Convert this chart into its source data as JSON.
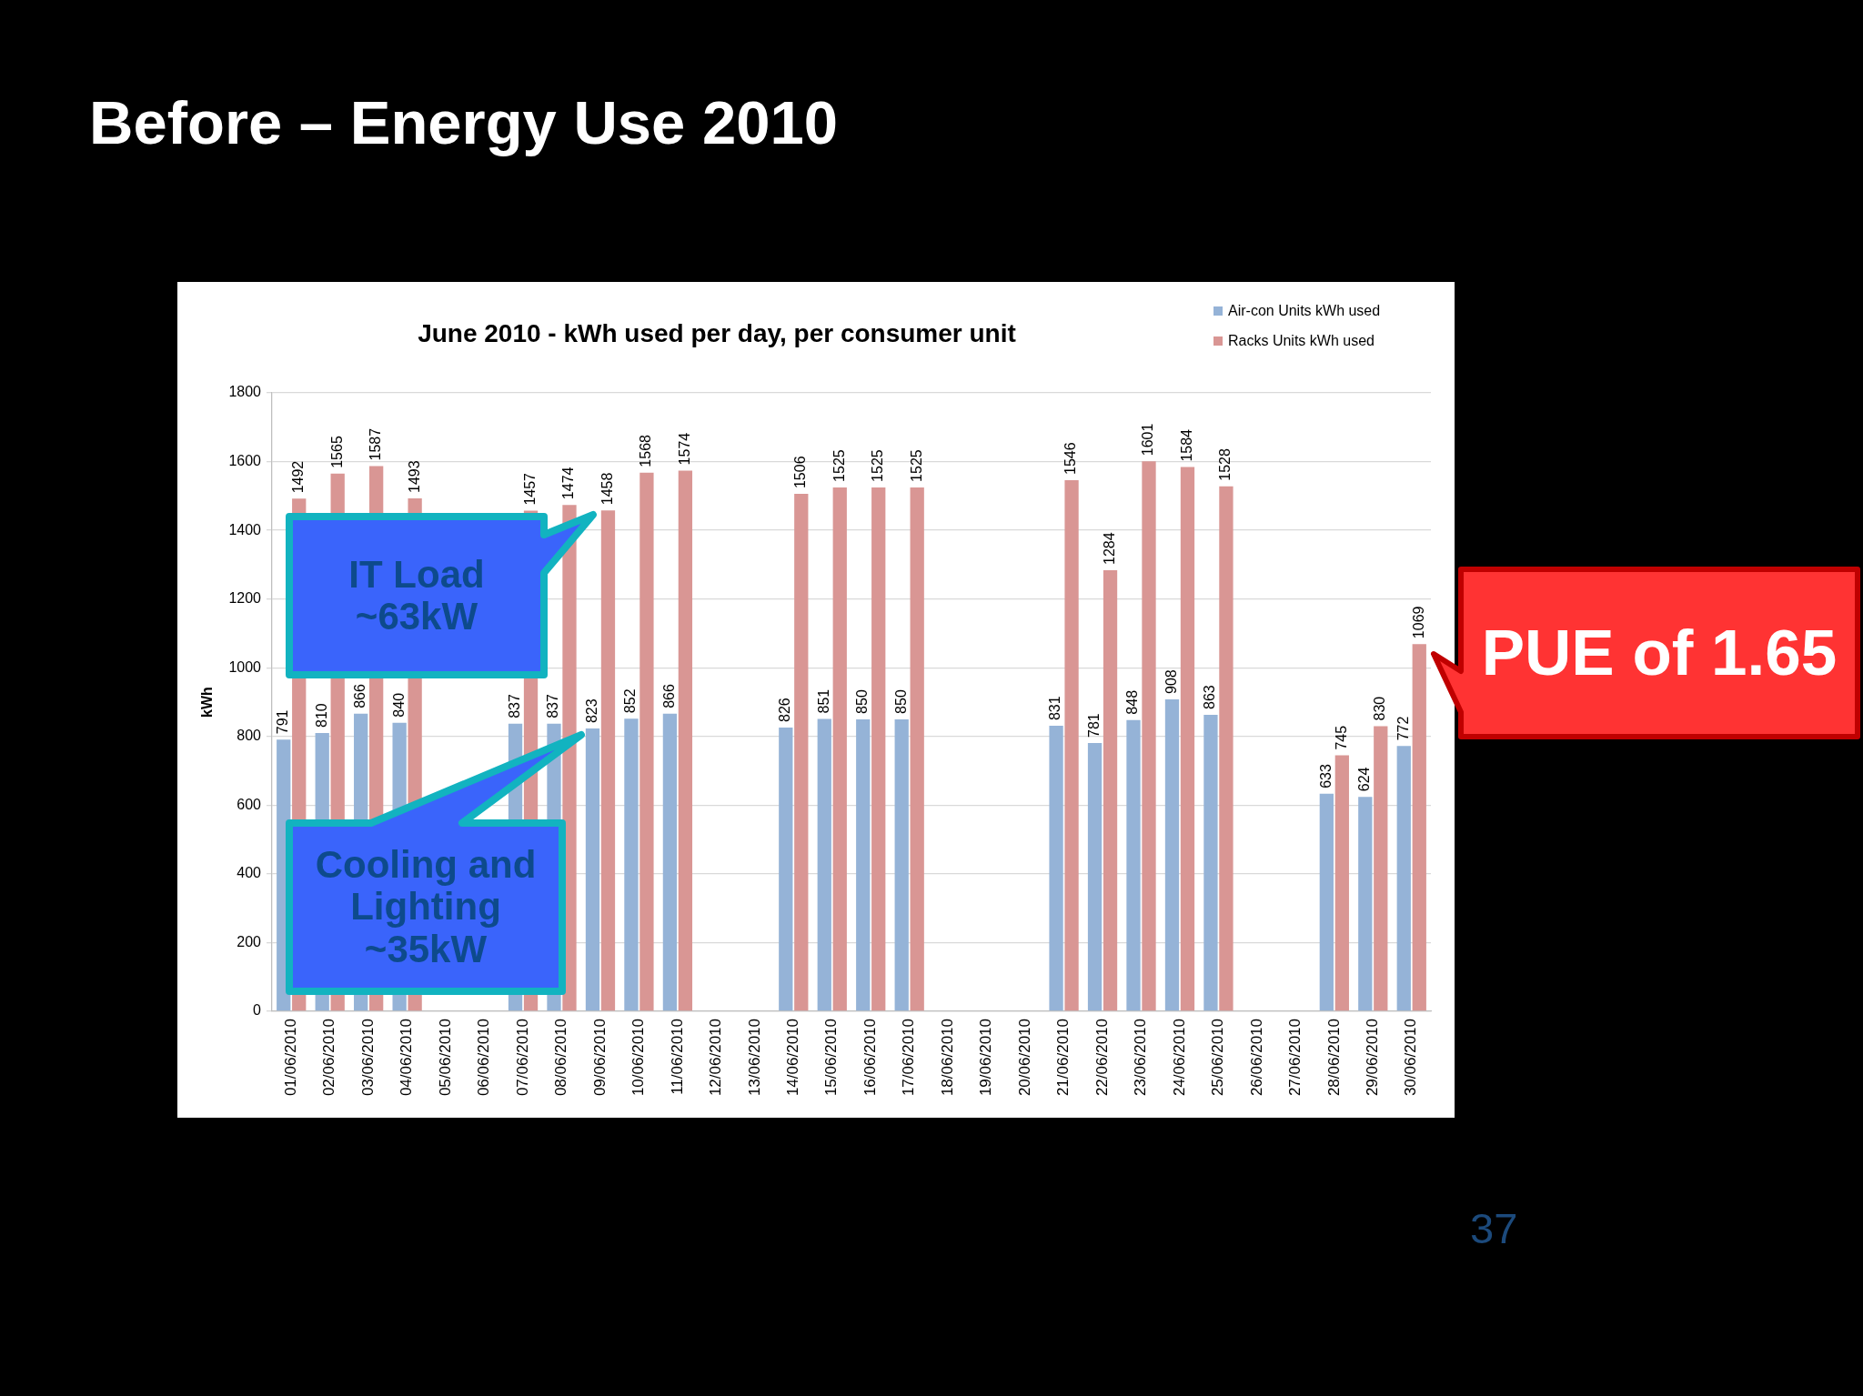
{
  "chart_data": {
    "type": "bar",
    "title": "Before – Energy Use 2010",
    "subtitle": "June 2010 - kWh used per day, per consumer unit",
    "ylabel": "kWh",
    "categories": [
      "01/06/2010",
      "02/06/2010",
      "03/06/2010",
      "04/06/2010",
      "05/06/2010",
      "06/06/2010",
      "07/06/2010",
      "08/06/2010",
      "09/06/2010",
      "10/06/2010",
      "11/06/2010",
      "12/06/2010",
      "13/06/2010",
      "14/06/2010",
      "15/06/2010",
      "16/06/2010",
      "17/06/2010",
      "18/06/2010",
      "19/06/2010",
      "20/06/2010",
      "21/06/2010",
      "22/06/2010",
      "23/06/2010",
      "24/06/2010",
      "25/06/2010",
      "26/06/2010",
      "27/06/2010",
      "28/06/2010",
      "29/06/2010",
      "30/06/2010"
    ],
    "series": [
      {
        "name": "Air-con Units kWh used",
        "color": "#95b3d7",
        "values": [
          791,
          810,
          866,
          840,
          null,
          null,
          837,
          837,
          823,
          852,
          866,
          null,
          null,
          826,
          851,
          850,
          850,
          null,
          null,
          null,
          831,
          781,
          848,
          908,
          863,
          null,
          null,
          633,
          624,
          772
        ]
      },
      {
        "name": "Racks Units kWh used",
        "color": "#d99694",
        "values": [
          1492,
          1565,
          1587,
          1493,
          null,
          null,
          1457,
          1474,
          1458,
          1568,
          1574,
          null,
          null,
          1506,
          1525,
          1525,
          1525,
          null,
          null,
          null,
          1546,
          1284,
          1601,
          1584,
          1528,
          null,
          null,
          745,
          830,
          1069
        ]
      }
    ],
    "ylim": [
      0,
      1800
    ],
    "yticks": [
      0,
      200,
      400,
      600,
      800,
      1000,
      1200,
      1400,
      1600,
      1800
    ],
    "grid": "y",
    "legend": "top right",
    "data_labels": true,
    "annotations": [
      "IT Load\n~63kW",
      "Cooling and\nLighting\n~35kW",
      "PUE of 1.65",
      "37"
    ]
  }
}
